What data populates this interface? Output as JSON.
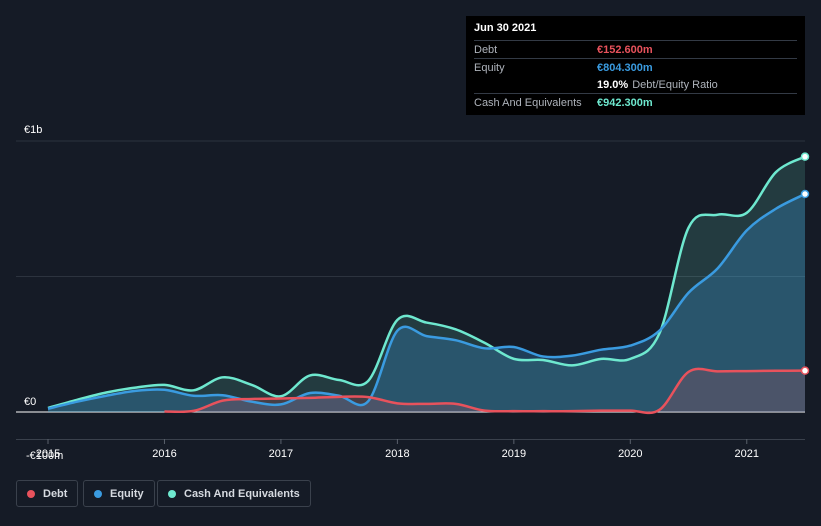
{
  "tooltip": {
    "date": "Jun 30 2021",
    "rows": [
      {
        "label": "Debt",
        "value": "€152.600m",
        "color": "#e8525c"
      },
      {
        "label": "Equity",
        "value": "€804.300m",
        "color": "#3a9be0"
      },
      {
        "label": "",
        "value": "19.0%",
        "extra": "Debt/Equity Ratio",
        "color": "#ffffff"
      },
      {
        "label": "Cash And Equivalents",
        "value": "€942.300m",
        "color": "#6ee8cf"
      }
    ]
  },
  "legend": [
    {
      "label": "Debt",
      "color": "#e8525c"
    },
    {
      "label": "Equity",
      "color": "#3a9be0"
    },
    {
      "label": "Cash And Equivalents",
      "color": "#6ee8cf"
    }
  ],
  "chart_data": {
    "type": "area",
    "unit": "€m",
    "ylim": [
      -100,
      1000
    ],
    "y_tick_labels": [
      {
        "value": 1000,
        "label": "€1b"
      },
      {
        "value": 0,
        "label": "€0"
      },
      {
        "value": -100,
        "label": "-€100m"
      }
    ],
    "x_tick_labels": [
      "2015",
      "2016",
      "2017",
      "2018",
      "2019",
      "2020",
      "2021"
    ],
    "xlim": [
      2015.0,
      2021.5
    ],
    "grid": true,
    "series": [
      {
        "name": "Cash And Equivalents",
        "color": "#6ee8cf",
        "points": [
          [
            2015.0,
            15
          ],
          [
            2015.25,
            45
          ],
          [
            2015.5,
            72
          ],
          [
            2015.75,
            90
          ],
          [
            2016.0,
            100
          ],
          [
            2016.25,
            80
          ],
          [
            2016.5,
            128
          ],
          [
            2016.75,
            100
          ],
          [
            2017.0,
            58
          ],
          [
            2017.25,
            135
          ],
          [
            2017.5,
            118
          ],
          [
            2017.75,
            115
          ],
          [
            2018.0,
            340
          ],
          [
            2018.25,
            330
          ],
          [
            2018.5,
            305
          ],
          [
            2018.75,
            255
          ],
          [
            2019.0,
            196
          ],
          [
            2019.25,
            192
          ],
          [
            2019.5,
            172
          ],
          [
            2019.75,
            196
          ],
          [
            2020.0,
            196
          ],
          [
            2020.25,
            290
          ],
          [
            2020.5,
            680
          ],
          [
            2020.75,
            728
          ],
          [
            2021.0,
            735
          ],
          [
            2021.25,
            885
          ],
          [
            2021.5,
            942.3
          ]
        ]
      },
      {
        "name": "Equity",
        "color": "#3a9be0",
        "points": [
          [
            2015.0,
            12
          ],
          [
            2015.25,
            38
          ],
          [
            2015.5,
            60
          ],
          [
            2015.75,
            78
          ],
          [
            2016.0,
            82
          ],
          [
            2016.25,
            60
          ],
          [
            2016.5,
            62
          ],
          [
            2016.75,
            38
          ],
          [
            2017.0,
            28
          ],
          [
            2017.25,
            70
          ],
          [
            2017.5,
            60
          ],
          [
            2017.75,
            40
          ],
          [
            2018.0,
            300
          ],
          [
            2018.25,
            280
          ],
          [
            2018.5,
            265
          ],
          [
            2018.75,
            235
          ],
          [
            2019.0,
            240
          ],
          [
            2019.25,
            205
          ],
          [
            2019.5,
            208
          ],
          [
            2019.75,
            230
          ],
          [
            2020.0,
            245
          ],
          [
            2020.25,
            300
          ],
          [
            2020.5,
            440
          ],
          [
            2020.75,
            530
          ],
          [
            2021.0,
            670
          ],
          [
            2021.25,
            750
          ],
          [
            2021.5,
            804.3
          ]
        ]
      },
      {
        "name": "Debt",
        "color": "#e8525c",
        "points": [
          [
            2016.0,
            2
          ],
          [
            2016.25,
            4
          ],
          [
            2016.5,
            42
          ],
          [
            2016.75,
            48
          ],
          [
            2017.0,
            50
          ],
          [
            2017.25,
            52
          ],
          [
            2017.5,
            56
          ],
          [
            2017.75,
            55
          ],
          [
            2018.0,
            32
          ],
          [
            2018.25,
            30
          ],
          [
            2018.5,
            30
          ],
          [
            2018.75,
            5
          ],
          [
            2019.0,
            3
          ],
          [
            2019.25,
            3
          ],
          [
            2019.5,
            3
          ],
          [
            2019.75,
            5
          ],
          [
            2020.0,
            5
          ],
          [
            2020.25,
            8
          ],
          [
            2020.5,
            148
          ],
          [
            2020.75,
            150
          ],
          [
            2021.0,
            151
          ],
          [
            2021.25,
            152
          ],
          [
            2021.5,
            152.6
          ]
        ]
      }
    ]
  }
}
